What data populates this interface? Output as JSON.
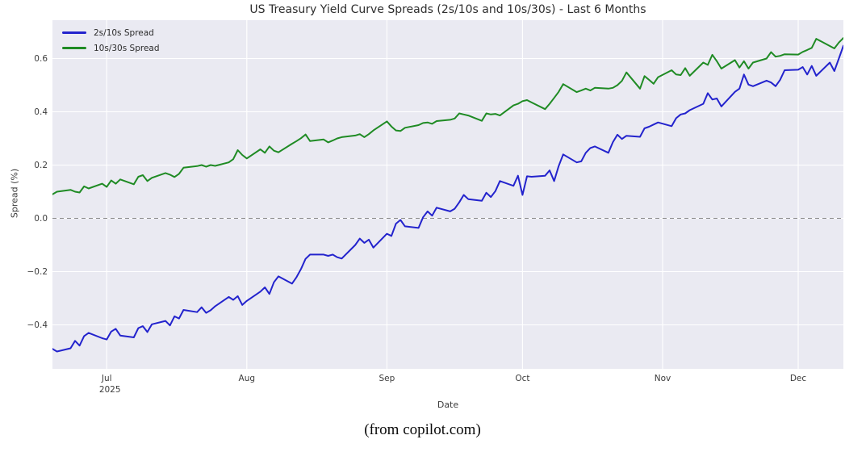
{
  "caption": "(from copilot.com)",
  "chart_data": {
    "type": "line",
    "title": "US Treasury Yield Curve Spreads (2s/10s and 10s/30s) - Last 6 Months",
    "xlabel": "Date",
    "ylabel": "Spread (%)",
    "grid": true,
    "legend_position": "upper left",
    "plot_background": "#eaeaf2",
    "grid_color": "#ffffff",
    "zero_line_color": "#8c8c8c",
    "zero_line_value": 0.0,
    "ylim": [
      -0.56,
      0.74
    ],
    "x_range": [
      "2025-06-19",
      "2025-12-11"
    ],
    "y_ticks": [
      {
        "value": 0.6,
        "label": "0.6"
      },
      {
        "value": 0.4,
        "label": "0.4"
      },
      {
        "value": 0.2,
        "label": "0.2"
      },
      {
        "value": 0.0,
        "label": "0.0"
      },
      {
        "value": -0.2,
        "label": "−0.2"
      },
      {
        "value": -0.4,
        "label": "−0.4"
      }
    ],
    "x_ticks": [
      {
        "date": "2025-07-01",
        "label": "Jul",
        "sublabel": "2025"
      },
      {
        "date": "2025-08-01",
        "label": "Aug",
        "sublabel": ""
      },
      {
        "date": "2025-09-01",
        "label": "Sep",
        "sublabel": ""
      },
      {
        "date": "2025-10-01",
        "label": "Oct",
        "sublabel": ""
      },
      {
        "date": "2025-11-01",
        "label": "Nov",
        "sublabel": ""
      },
      {
        "date": "2025-12-01",
        "label": "Dec",
        "sublabel": ""
      }
    ],
    "x": [
      "2025-06-19",
      "2025-06-20",
      "2025-06-23",
      "2025-06-24",
      "2025-06-25",
      "2025-06-26",
      "2025-06-27",
      "2025-06-30",
      "2025-07-01",
      "2025-07-02",
      "2025-07-03",
      "2025-07-04",
      "2025-07-07",
      "2025-07-08",
      "2025-07-09",
      "2025-07-10",
      "2025-07-11",
      "2025-07-14",
      "2025-07-15",
      "2025-07-16",
      "2025-07-17",
      "2025-07-18",
      "2025-07-21",
      "2025-07-22",
      "2025-07-23",
      "2025-07-24",
      "2025-07-25",
      "2025-07-28",
      "2025-07-29",
      "2025-07-30",
      "2025-07-31",
      "2025-08-01",
      "2025-08-04",
      "2025-08-05",
      "2025-08-06",
      "2025-08-07",
      "2025-08-08",
      "2025-08-11",
      "2025-08-12",
      "2025-08-13",
      "2025-08-14",
      "2025-08-15",
      "2025-08-18",
      "2025-08-19",
      "2025-08-20",
      "2025-08-21",
      "2025-08-22",
      "2025-08-25",
      "2025-08-26",
      "2025-08-27",
      "2025-08-28",
      "2025-08-29",
      "2025-09-01",
      "2025-09-02",
      "2025-09-03",
      "2025-09-04",
      "2025-09-05",
      "2025-09-08",
      "2025-09-09",
      "2025-09-10",
      "2025-09-11",
      "2025-09-12",
      "2025-09-15",
      "2025-09-16",
      "2025-09-17",
      "2025-09-18",
      "2025-09-19",
      "2025-09-22",
      "2025-09-23",
      "2025-09-24",
      "2025-09-25",
      "2025-09-26",
      "2025-09-29",
      "2025-09-30",
      "2025-10-01",
      "2025-10-02",
      "2025-10-03",
      "2025-10-06",
      "2025-10-07",
      "2025-10-08",
      "2025-10-09",
      "2025-10-10",
      "2025-10-13",
      "2025-10-14",
      "2025-10-15",
      "2025-10-16",
      "2025-10-17",
      "2025-10-20",
      "2025-10-21",
      "2025-10-22",
      "2025-10-23",
      "2025-10-24",
      "2025-10-27",
      "2025-10-28",
      "2025-10-29",
      "2025-10-30",
      "2025-10-31",
      "2025-11-03",
      "2025-11-04",
      "2025-11-05",
      "2025-11-06",
      "2025-11-07",
      "2025-11-10",
      "2025-11-11",
      "2025-11-12",
      "2025-11-13",
      "2025-11-14",
      "2025-11-17",
      "2025-11-18",
      "2025-11-19",
      "2025-11-20",
      "2025-11-21",
      "2025-11-24",
      "2025-11-25",
      "2025-11-26",
      "2025-11-27",
      "2025-11-28",
      "2025-12-01",
      "2025-12-02",
      "2025-12-03",
      "2025-12-04",
      "2025-12-05",
      "2025-12-08",
      "2025-12-09",
      "2025-12-10",
      "2025-12-11"
    ],
    "series": [
      {
        "name": "2s/10s Spread",
        "color": "#2323cd",
        "values": [
          -0.49,
          -0.5,
          -0.488,
          -0.46,
          -0.478,
          -0.442,
          -0.43,
          -0.45,
          -0.455,
          -0.425,
          -0.415,
          -0.44,
          -0.447,
          -0.412,
          -0.405,
          -0.427,
          -0.398,
          -0.385,
          -0.402,
          -0.368,
          -0.376,
          -0.344,
          -0.352,
          -0.334,
          -0.355,
          -0.345,
          -0.33,
          -0.295,
          -0.306,
          -0.292,
          -0.325,
          -0.31,
          -0.275,
          -0.259,
          -0.284,
          -0.24,
          -0.218,
          -0.245,
          -0.221,
          -0.19,
          -0.152,
          -0.136,
          -0.136,
          -0.141,
          -0.136,
          -0.146,
          -0.151,
          -0.1,
          -0.076,
          -0.092,
          -0.08,
          -0.11,
          -0.058,
          -0.066,
          -0.02,
          -0.006,
          -0.03,
          -0.036,
          0.004,
          0.026,
          0.01,
          0.04,
          0.026,
          0.036,
          0.06,
          0.088,
          0.072,
          0.066,
          0.096,
          0.08,
          0.102,
          0.14,
          0.122,
          0.16,
          0.088,
          0.158,
          0.156,
          0.16,
          0.18,
          0.14,
          0.196,
          0.24,
          0.21,
          0.214,
          0.246,
          0.264,
          0.27,
          0.246,
          0.286,
          0.314,
          0.298,
          0.31,
          0.306,
          0.338,
          0.344,
          0.352,
          0.36,
          0.346,
          0.376,
          0.39,
          0.394,
          0.406,
          0.43,
          0.47,
          0.446,
          0.45,
          0.42,
          0.475,
          0.487,
          0.54,
          0.502,
          0.496,
          0.517,
          0.51,
          0.496,
          0.52,
          0.556,
          0.558,
          0.568,
          0.54,
          0.572,
          0.535,
          0.585,
          0.553,
          0.6,
          0.648
        ]
      },
      {
        "name": "10s/30s Spread",
        "color": "#1f8b24",
        "values": [
          0.09,
          0.1,
          0.107,
          0.1,
          0.097,
          0.12,
          0.112,
          0.13,
          0.118,
          0.142,
          0.13,
          0.146,
          0.128,
          0.156,
          0.162,
          0.14,
          0.152,
          0.17,
          0.164,
          0.155,
          0.167,
          0.19,
          0.196,
          0.2,
          0.194,
          0.2,
          0.197,
          0.21,
          0.222,
          0.256,
          0.238,
          0.225,
          0.259,
          0.246,
          0.27,
          0.254,
          0.248,
          0.28,
          0.29,
          0.301,
          0.315,
          0.29,
          0.296,
          0.285,
          0.292,
          0.3,
          0.305,
          0.311,
          0.316,
          0.305,
          0.316,
          0.33,
          0.364,
          0.345,
          0.33,
          0.328,
          0.34,
          0.35,
          0.358,
          0.36,
          0.355,
          0.365,
          0.37,
          0.375,
          0.394,
          0.39,
          0.386,
          0.366,
          0.394,
          0.39,
          0.392,
          0.386,
          0.424,
          0.43,
          0.44,
          0.444,
          0.435,
          0.41,
          0.43,
          0.452,
          0.475,
          0.504,
          0.474,
          0.48,
          0.487,
          0.48,
          0.49,
          0.487,
          0.49,
          0.5,
          0.516,
          0.548,
          0.487,
          0.534,
          0.52,
          0.505,
          0.53,
          0.556,
          0.54,
          0.538,
          0.564,
          0.535,
          0.585,
          0.576,
          0.614,
          0.59,
          0.562,
          0.594,
          0.566,
          0.59,
          0.562,
          0.585,
          0.6,
          0.624,
          0.607,
          0.61,
          0.616,
          0.615,
          0.625,
          0.632,
          0.64,
          0.674,
          0.647,
          0.638,
          0.66,
          0.677
        ]
      }
    ]
  }
}
